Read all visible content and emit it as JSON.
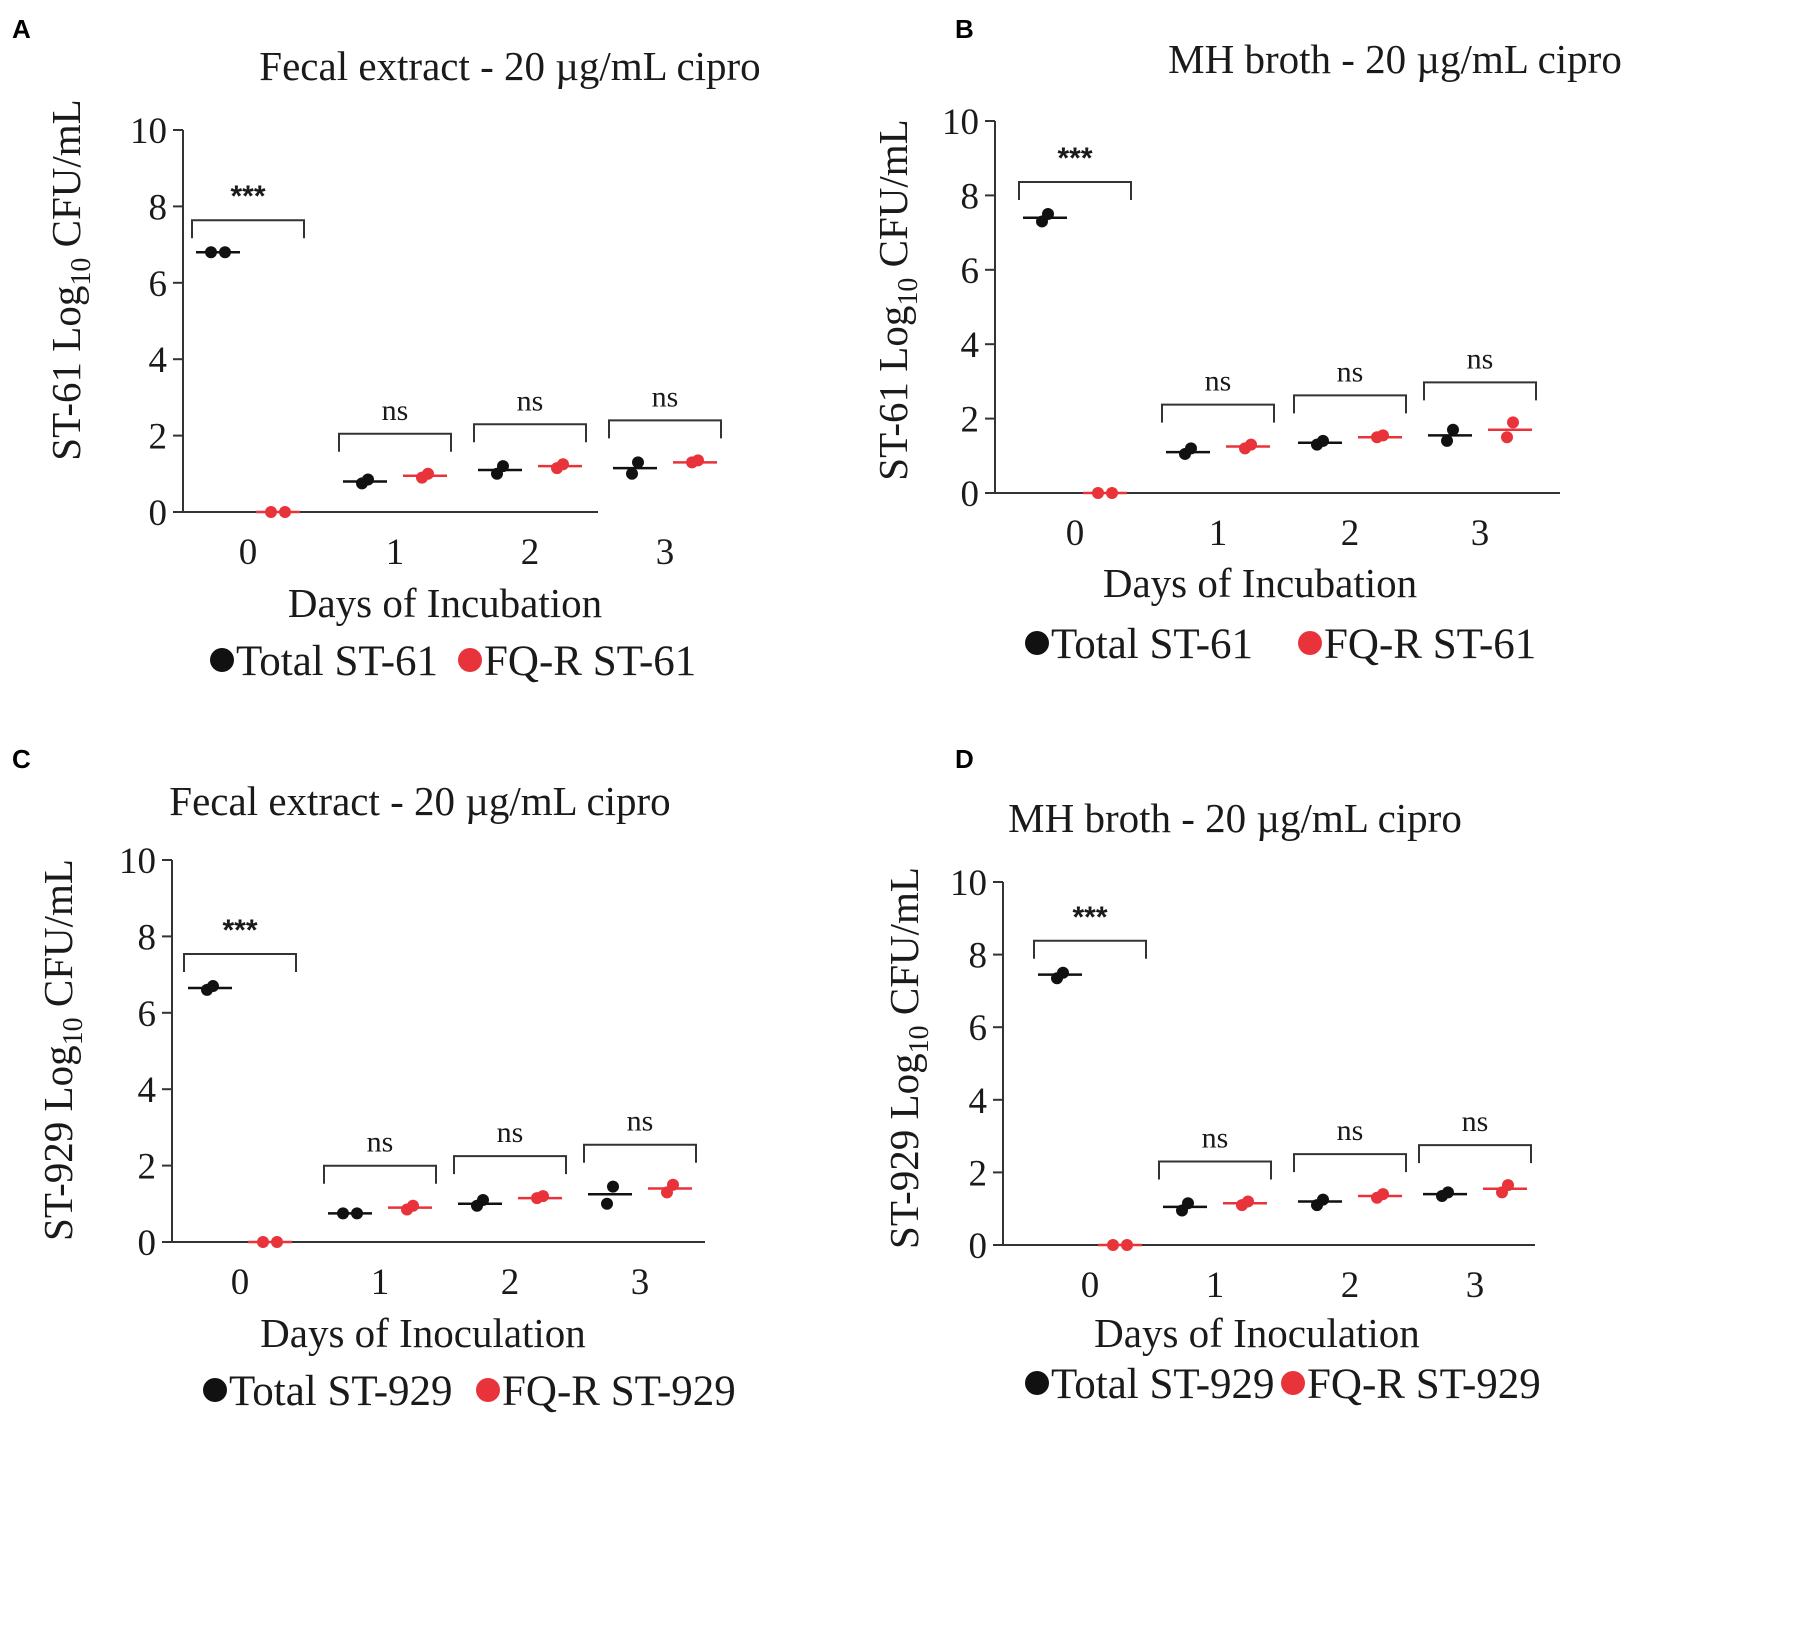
{
  "colors": {
    "total": "#111111",
    "fqr": "#e8333a",
    "axis": "#333333"
  },
  "chart_data": [
    {
      "panel": "A",
      "type": "scatter",
      "title": "Fecal extract - 20 µg/mL cipro",
      "ylabel_prefix": "ST-61 Log",
      "ylabel_sub": "10",
      "ylabel_suffix": " CFU/mL",
      "xlabel": "Days of Incubation",
      "ylim": [
        0,
        10
      ],
      "yticks": [
        "0",
        "2",
        "4",
        "6",
        "8",
        "10"
      ],
      "categories": [
        "0",
        "1",
        "2",
        "3"
      ],
      "series": [
        {
          "name": "Total ST-61",
          "color_key": "total",
          "means": [
            6.8,
            0.8,
            1.1,
            1.15
          ],
          "points": [
            [
              6.8,
              6.8
            ],
            [
              0.75,
              0.85
            ],
            [
              1.0,
              1.2
            ],
            [
              1.0,
              1.3
            ]
          ]
        },
        {
          "name": "FQ-R ST-61",
          "color_key": "fqr",
          "means": [
            0,
            0.95,
            1.2,
            1.3
          ],
          "points": [
            [
              0,
              0
            ],
            [
              0.9,
              1.0
            ],
            [
              1.15,
              1.25
            ],
            [
              1.3,
              1.35
            ]
          ]
        }
      ],
      "significance": [
        "***",
        "ns",
        "ns",
        "ns"
      ],
      "legend": [
        "Total ST-61",
        "FQ-R ST-61"
      ]
    },
    {
      "panel": "B",
      "type": "scatter",
      "title": "MH broth - 20 µg/mL cipro",
      "ylabel_prefix": "ST-61 Log",
      "ylabel_sub": "10",
      "ylabel_suffix": " CFU/mL",
      "xlabel": "Days of Incubation",
      "ylim": [
        0,
        10
      ],
      "yticks": [
        "0",
        "2",
        "4",
        "6",
        "8",
        "10"
      ],
      "categories": [
        "0",
        "1",
        "2",
        "3"
      ],
      "series": [
        {
          "name": "Total ST-61",
          "color_key": "total",
          "means": [
            7.4,
            1.1,
            1.35,
            1.55
          ],
          "points": [
            [
              7.3,
              7.5
            ],
            [
              1.05,
              1.2
            ],
            [
              1.3,
              1.4
            ],
            [
              1.4,
              1.7
            ]
          ]
        },
        {
          "name": "FQ-R ST-61",
          "color_key": "fqr",
          "means": [
            0,
            1.25,
            1.5,
            1.7
          ],
          "points": [
            [
              0,
              0
            ],
            [
              1.2,
              1.3
            ],
            [
              1.5,
              1.55
            ],
            [
              1.5,
              1.9
            ]
          ]
        }
      ],
      "significance": [
        "***",
        "ns",
        "ns",
        "ns"
      ],
      "legend": [
        "Total ST-61",
        "FQ-R ST-61"
      ]
    },
    {
      "panel": "C",
      "type": "scatter",
      "title": "Fecal extract - 20 µg/mL cipro",
      "ylabel_prefix": "ST-929 Log",
      "ylabel_sub": "10",
      "ylabel_suffix": " CFU/mL",
      "xlabel": "Days of Inoculation",
      "ylim": [
        0,
        10
      ],
      "yticks": [
        "0",
        "2",
        "4",
        "6",
        "8",
        "10"
      ],
      "categories": [
        "0",
        "1",
        "2",
        "3"
      ],
      "series": [
        {
          "name": "Total ST-929",
          "color_key": "total",
          "means": [
            6.65,
            0.75,
            1.0,
            1.25
          ],
          "points": [
            [
              6.6,
              6.7
            ],
            [
              0.75,
              0.75
            ],
            [
              0.95,
              1.1
            ],
            [
              1.0,
              1.45
            ]
          ]
        },
        {
          "name": "FQ-R ST-929",
          "color_key": "fqr",
          "means": [
            0,
            0.9,
            1.15,
            1.4
          ],
          "points": [
            [
              0,
              0
            ],
            [
              0.85,
              0.95
            ],
            [
              1.15,
              1.2
            ],
            [
              1.3,
              1.5
            ]
          ]
        }
      ],
      "significance": [
        "***",
        "ns",
        "ns",
        "ns"
      ],
      "legend": [
        "Total ST-929",
        "FQ-R ST-929"
      ]
    },
    {
      "panel": "D",
      "type": "scatter",
      "title": "MH broth - 20 µg/mL cipro",
      "ylabel_prefix": "ST-929 Log",
      "ylabel_sub": "10",
      "ylabel_suffix": " CFU/mL",
      "xlabel": "Days of Inoculation",
      "ylim": [
        0,
        10
      ],
      "yticks": [
        "0",
        "2",
        "4",
        "6",
        "8",
        "10"
      ],
      "categories": [
        "0",
        "1",
        "2",
        "3"
      ],
      "series": [
        {
          "name": "Total ST-929",
          "color_key": "total",
          "means": [
            7.45,
            1.05,
            1.2,
            1.4
          ],
          "points": [
            [
              7.35,
              7.5
            ],
            [
              0.95,
              1.15
            ],
            [
              1.1,
              1.25
            ],
            [
              1.35,
              1.45
            ]
          ]
        },
        {
          "name": "FQ-R ST-929",
          "color_key": "fqr",
          "means": [
            0,
            1.15,
            1.35,
            1.55
          ],
          "points": [
            [
              0,
              0
            ],
            [
              1.1,
              1.2
            ],
            [
              1.3,
              1.4
            ],
            [
              1.45,
              1.65
            ]
          ]
        }
      ],
      "significance": [
        "***",
        "ns",
        "ns",
        "ns"
      ],
      "legend": [
        "Total ST-929",
        "FQ-R ST-929"
      ]
    }
  ]
}
